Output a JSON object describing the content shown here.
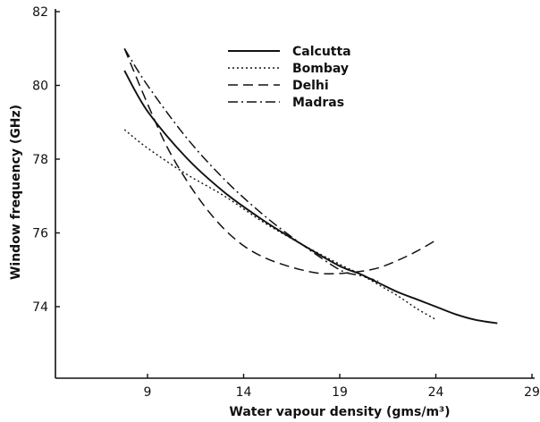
{
  "chart_data": {
    "type": "line",
    "xlabel": "Water vapour density (gms/m³)",
    "ylabel": "Window frequency (GHz)",
    "xlim": [
      5.5,
      29
    ],
    "ylim": [
      72.5,
      82
    ],
    "xticks": [
      9,
      14,
      19,
      24,
      29
    ],
    "xtick_labels": [
      "9",
      "14",
      "19",
      "24",
      "29"
    ],
    "yticks": [
      74,
      76,
      78,
      80,
      82
    ],
    "ytick_labels": [
      "74",
      "76",
      "78",
      "80",
      "82"
    ],
    "grid": false,
    "legend_position": "top-center",
    "series": [
      {
        "name": "Calcutta",
        "style": "solid",
        "x": [
          7.8,
          9,
          11,
          13,
          15,
          17,
          19,
          20,
          21,
          22,
          23,
          24,
          25,
          26,
          27.2
        ],
        "y": [
          80.4,
          79.3,
          78.05,
          77.1,
          76.35,
          75.7,
          75.1,
          74.9,
          74.65,
          74.4,
          74.2,
          74.0,
          73.8,
          73.65,
          73.55
        ]
      },
      {
        "name": "Bombay",
        "style": "dotted",
        "x": [
          7.8,
          9,
          11,
          13,
          15,
          17,
          19,
          20,
          21,
          22,
          23,
          24
        ],
        "y": [
          78.8,
          78.3,
          77.6,
          77.0,
          76.3,
          75.7,
          75.15,
          74.9,
          74.6,
          74.3,
          73.95,
          73.65
        ]
      },
      {
        "name": "Delhi",
        "style": "dashed",
        "x": [
          7.8,
          9,
          10,
          11,
          12,
          13,
          14,
          15,
          16,
          17,
          18,
          19,
          20,
          21,
          22,
          23,
          24
        ],
        "y": [
          81.0,
          79.5,
          78.35,
          77.45,
          76.7,
          76.1,
          75.65,
          75.35,
          75.15,
          75.0,
          74.9,
          74.9,
          74.95,
          75.05,
          75.25,
          75.5,
          75.8
        ]
      },
      {
        "name": "Madras",
        "style": "dash-dot",
        "x": [
          7.8,
          9,
          11,
          13,
          15,
          17,
          19,
          20,
          21
        ],
        "y": [
          81.0,
          80.0,
          78.6,
          77.45,
          76.5,
          75.7,
          75.0,
          74.85,
          74.7
        ]
      }
    ]
  },
  "colors": {
    "ink": "#111111",
    "background": "#ffffff"
  }
}
